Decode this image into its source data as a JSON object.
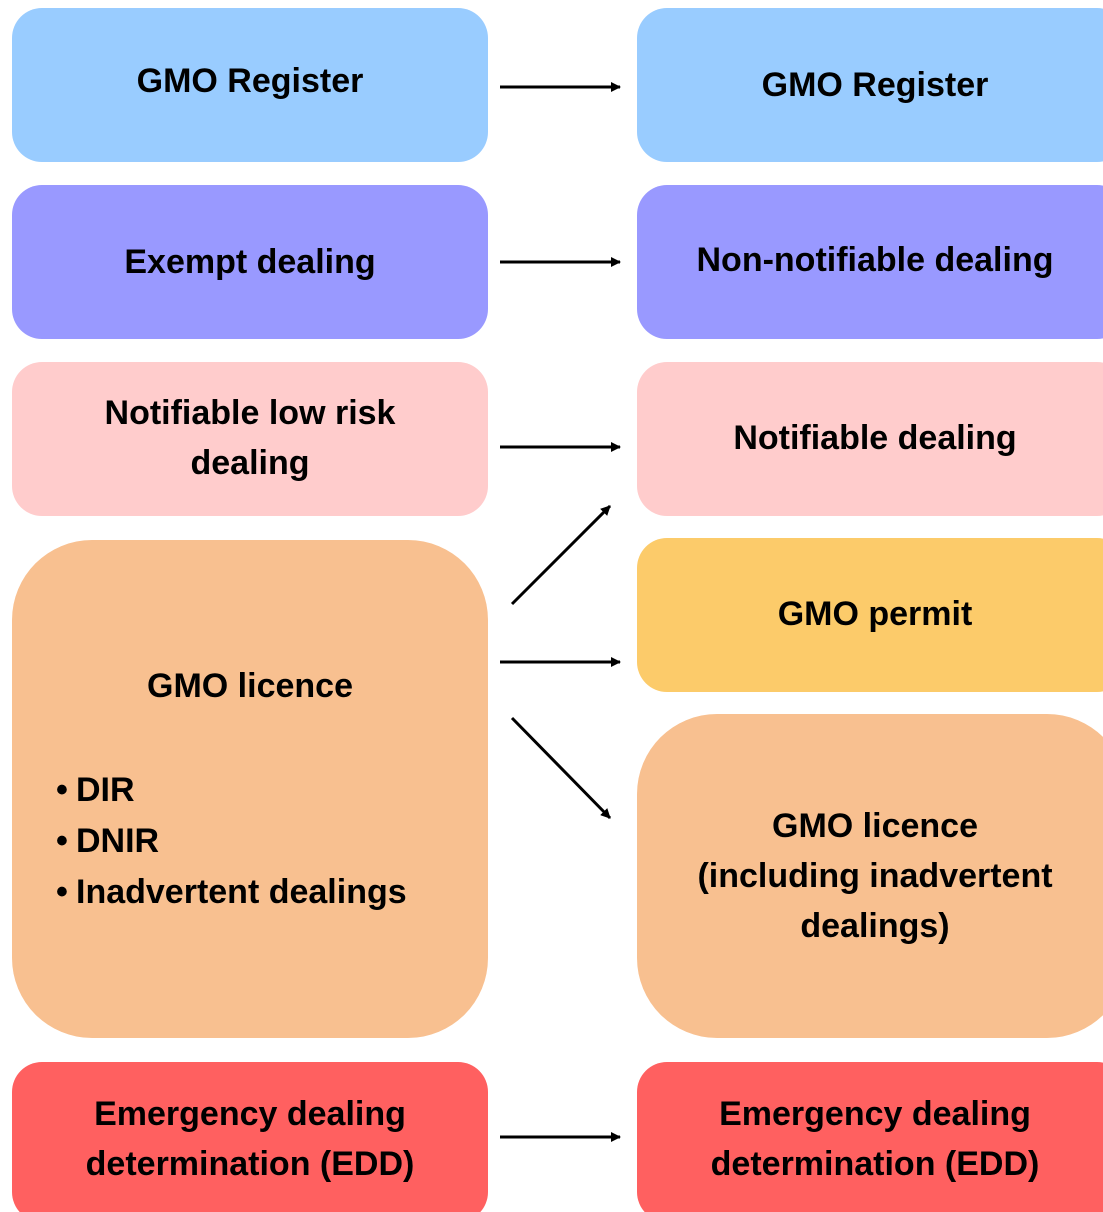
{
  "left": [
    {
      "lines": [
        "GMO Register"
      ]
    },
    {
      "lines": [
        "Exempt dealing"
      ]
    },
    {
      "lines": [
        "Notifiable low risk",
        "dealing"
      ]
    },
    {
      "lines": [
        "GMO licence"
      ],
      "bullets": [
        "DIR",
        "DNIR",
        "Inadvertent dealings"
      ]
    },
    {
      "lines": [
        "Emergency dealing",
        "determination (EDD)"
      ]
    }
  ],
  "right": [
    {
      "lines": [
        "GMO Register"
      ]
    },
    {
      "lines": [
        "Non-notifiable dealing"
      ]
    },
    {
      "lines": [
        "Notifiable dealing"
      ]
    },
    {
      "lines": [
        "GMO permit"
      ]
    },
    {
      "lines": [
        "GMO licence",
        "(including inadvertent",
        "dealings)"
      ]
    },
    {
      "lines": [
        "Emergency dealing",
        "determination (EDD)"
      ]
    }
  ]
}
